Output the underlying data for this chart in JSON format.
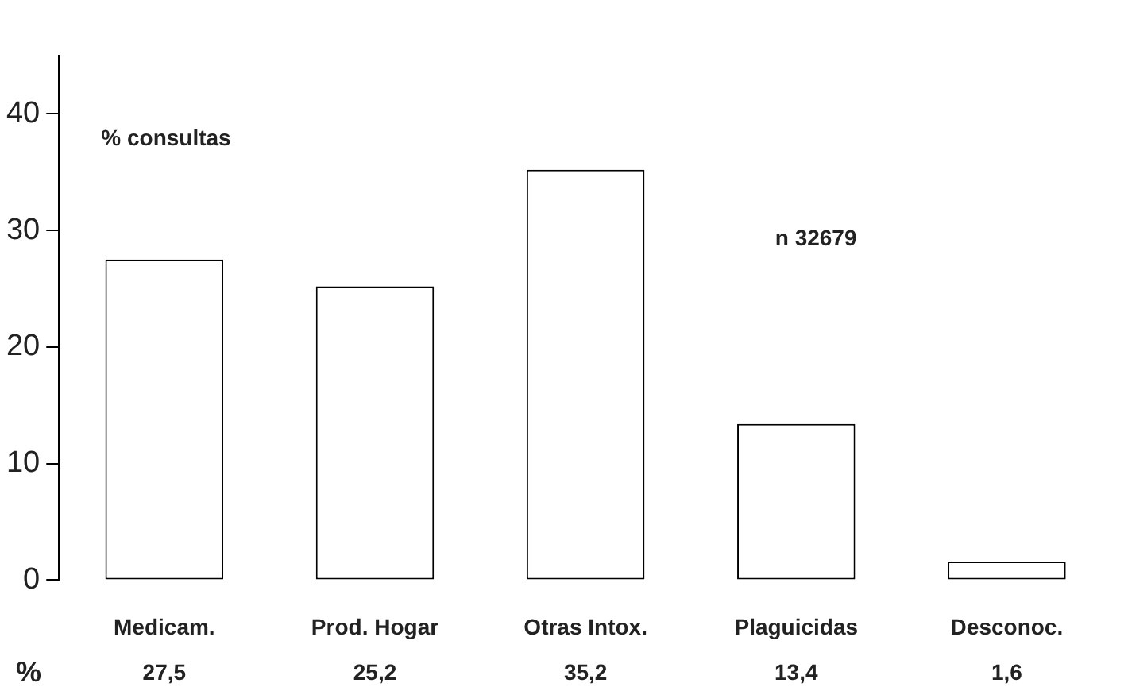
{
  "chart_data": {
    "type": "bar",
    "categories": [
      "Medicam.",
      "Prod. Hogar",
      "Otras Intox.",
      "Plaguicidas",
      "Desconoc."
    ],
    "values": [
      27.5,
      25.2,
      35.2,
      13.4,
      1.6
    ],
    "value_labels": [
      "27,5",
      "25,2",
      "35,2",
      "13,4",
      "1,6"
    ],
    "color": "#ffffff",
    "ylim": [
      0,
      45
    ],
    "yticks": [
      0,
      10,
      20,
      30,
      40
    ],
    "grid": false,
    "legend": false,
    "annotations": [
      "% consultas",
      "n 32679",
      "%"
    ]
  }
}
